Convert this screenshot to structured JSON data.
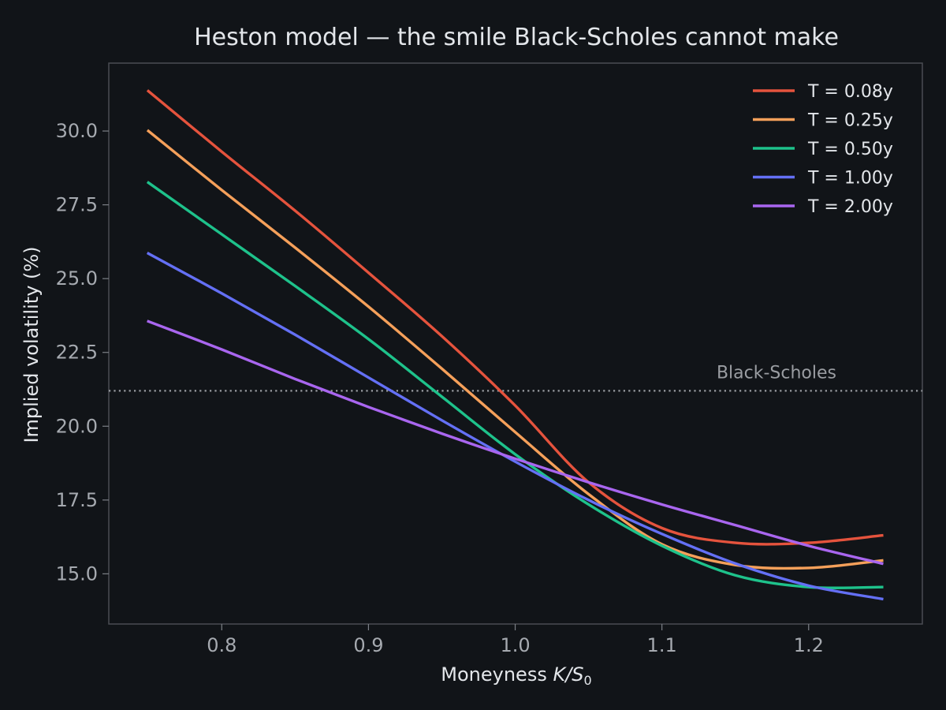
{
  "chart_data": {
    "type": "line",
    "title": "Heston model — the smile Black-Scholes cannot make",
    "xlabel_main": "Moneyness ",
    "xlabel_math_k": "K",
    "xlabel_math_slash": "/",
    "xlabel_math_s": "S",
    "xlabel_math_sub": "0",
    "ylabel": "Implied volatility (%)",
    "xlim": [
      0.723,
      1.2775
    ],
    "ylim": [
      13.3,
      32.3
    ],
    "xticks": [
      0.8,
      0.9,
      1.0,
      1.1,
      1.2
    ],
    "xtick_labels": [
      "0.8",
      "0.9",
      "1.0",
      "1.1",
      "1.2"
    ],
    "yticks": [
      15.0,
      17.5,
      20.0,
      22.5,
      25.0,
      27.5,
      30.0
    ],
    "ytick_labels": [
      "15.0",
      "17.5",
      "20.0",
      "22.5",
      "25.0",
      "27.5",
      "30.0"
    ],
    "grid": false,
    "legend_position": "top-right",
    "reference_line": {
      "label": "Black-Scholes",
      "y": 21.2,
      "style": "dotted"
    },
    "x": [
      0.75,
      0.8,
      0.85,
      0.9,
      0.95,
      1.0,
      1.05,
      1.1,
      1.15,
      1.2,
      1.25
    ],
    "series": [
      {
        "name": "T = 0.08y",
        "color": "#e5533d",
        "values": [
          31.35,
          29.3,
          27.3,
          25.2,
          23.05,
          20.7,
          18.1,
          16.55,
          16.05,
          16.05,
          16.3
        ]
      },
      {
        "name": "T = 0.25y",
        "color": "#f5a05a",
        "values": [
          30.0,
          28.0,
          26.05,
          24.05,
          21.95,
          19.8,
          17.7,
          16.0,
          15.3,
          15.2,
          15.45
        ]
      },
      {
        "name": "T = 0.50y",
        "color": "#1ec28b",
        "values": [
          28.25,
          26.5,
          24.75,
          22.95,
          21.0,
          19.05,
          17.35,
          15.95,
          14.95,
          14.55,
          14.55
        ]
      },
      {
        "name": "T = 1.00y",
        "color": "#6470f5",
        "values": [
          25.85,
          24.5,
          23.1,
          21.65,
          20.2,
          18.8,
          17.5,
          16.35,
          15.35,
          14.6,
          14.15
        ]
      },
      {
        "name": "T = 2.00y",
        "color": "#a966ef",
        "values": [
          23.55,
          22.6,
          21.6,
          20.65,
          19.75,
          18.9,
          18.1,
          17.35,
          16.65,
          15.95,
          15.35
        ]
      }
    ]
  }
}
